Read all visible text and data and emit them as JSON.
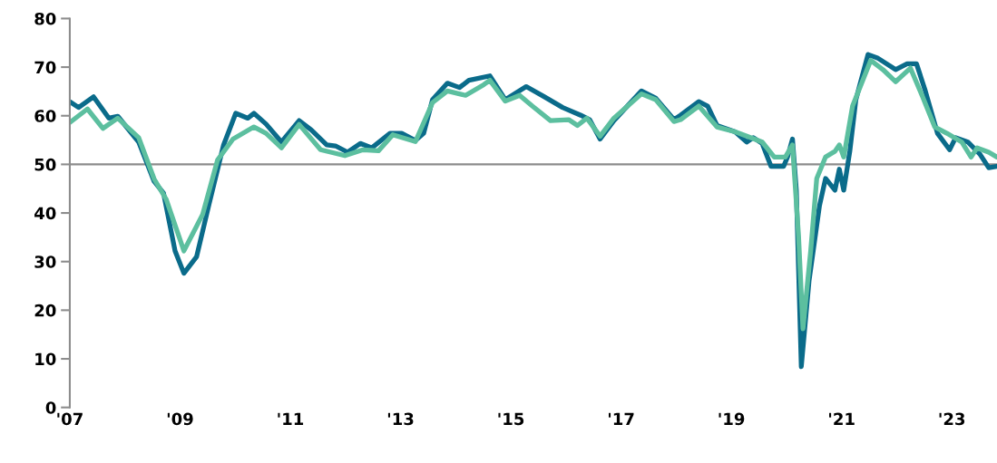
{
  "chart_data": {
    "type": "line",
    "xlim": [
      2007,
      2023.82
    ],
    "ylim": [
      0,
      80
    ],
    "xticks": [
      {
        "value": 2007,
        "label": "'07"
      },
      {
        "value": 2009,
        "label": "'09"
      },
      {
        "value": 2011,
        "label": "'11"
      },
      {
        "value": 2013,
        "label": "'13"
      },
      {
        "value": 2015,
        "label": "'15"
      },
      {
        "value": 2017,
        "label": "'17"
      },
      {
        "value": 2019,
        "label": "'19"
      },
      {
        "value": 2021,
        "label": "'21"
      },
      {
        "value": 2023,
        "label": "'23"
      }
    ],
    "yticks": [
      0,
      10,
      20,
      30,
      40,
      50,
      60,
      70,
      80
    ],
    "grid": false,
    "legend": false,
    "marker": "none",
    "line_style": "solid",
    "ref_lines": [
      {
        "axis": "y",
        "value": 50,
        "color": "#8c8c8c"
      }
    ],
    "series": [
      {
        "color": "#0a6b8a",
        "x": [
          2007.0,
          2007.16,
          2007.43,
          2007.71,
          2007.87,
          2008.25,
          2008.53,
          2008.7,
          2008.91,
          2009.07,
          2009.3,
          2009.52,
          2009.79,
          2010.01,
          2010.23,
          2010.34,
          2010.56,
          2010.84,
          2011.16,
          2011.38,
          2011.66,
          2011.82,
          2012.04,
          2012.27,
          2012.48,
          2012.81,
          2013.02,
          2013.27,
          2013.42,
          2013.58,
          2013.85,
          2014.07,
          2014.24,
          2014.62,
          2014.9,
          2015.28,
          2015.61,
          2015.94,
          2016.27,
          2016.43,
          2016.62,
          2016.87,
          2017.37,
          2017.63,
          2017.96,
          2018.08,
          2018.41,
          2018.57,
          2018.74,
          2019.07,
          2019.28,
          2019.4,
          2019.56,
          2019.72,
          2019.95,
          2020.02,
          2020.11,
          2020.18,
          2020.27,
          2020.41,
          2020.6,
          2020.71,
          2020.88,
          2020.96,
          2021.04,
          2021.15,
          2021.26,
          2021.48,
          2021.65,
          2021.98,
          2022.19,
          2022.36,
          2022.52,
          2022.74,
          2022.96,
          2023.07,
          2023.29,
          2023.51,
          2023.67,
          2023.82
        ],
        "values": [
          62.9,
          61.7,
          63.9,
          59.5,
          59.9,
          54.6,
          46.5,
          44.1,
          32.2,
          27.6,
          31.0,
          41.5,
          54.0,
          60.5,
          59.5,
          60.5,
          58.3,
          54.6,
          59.0,
          57.1,
          54.0,
          53.8,
          52.5,
          54.3,
          53.4,
          56.4,
          56.4,
          54.9,
          56.4,
          63.3,
          66.7,
          65.8,
          67.3,
          68.2,
          63.3,
          66.0,
          63.9,
          61.7,
          60.1,
          59.2,
          55.2,
          59.0,
          65.1,
          63.6,
          59.2,
          60.1,
          62.9,
          62.0,
          58.0,
          56.7,
          54.6,
          55.5,
          54.3,
          49.6,
          49.6,
          51.5,
          55.2,
          44.7,
          8.4,
          26.0,
          41.5,
          47.1,
          44.7,
          49.0,
          44.7,
          52.7,
          63.3,
          72.6,
          71.9,
          69.5,
          70.7,
          70.7,
          65.1,
          56.4,
          53.0,
          55.5,
          54.6,
          52.1,
          49.3,
          49.6
        ]
      },
      {
        "color": "#5cbf9f",
        "x": [
          2007.0,
          2007.32,
          2007.6,
          2007.87,
          2008.25,
          2008.53,
          2008.75,
          2009.07,
          2009.41,
          2009.68,
          2009.96,
          2010.34,
          2010.56,
          2010.84,
          2011.16,
          2011.55,
          2011.99,
          2012.32,
          2012.6,
          2012.86,
          2013.27,
          2013.58,
          2013.85,
          2014.18,
          2014.51,
          2014.62,
          2014.9,
          2015.16,
          2015.39,
          2015.72,
          2016.05,
          2016.21,
          2016.38,
          2016.62,
          2016.87,
          2017.37,
          2017.63,
          2017.96,
          2018.08,
          2018.41,
          2018.74,
          2019.07,
          2019.28,
          2019.56,
          2019.78,
          2019.98,
          2020.11,
          2020.22,
          2020.3,
          2020.44,
          2020.55,
          2020.71,
          2020.88,
          2020.96,
          2021.04,
          2021.2,
          2021.53,
          2021.75,
          2021.98,
          2022.25,
          2022.47,
          2022.69,
          2022.91,
          2023.18,
          2023.35,
          2023.46,
          2023.67,
          2023.82
        ],
        "values": [
          58.6,
          61.4,
          57.4,
          59.5,
          55.5,
          47.0,
          42.8,
          32.2,
          39.7,
          50.9,
          55.2,
          57.7,
          56.4,
          53.4,
          58.2,
          53.0,
          51.8,
          53.0,
          52.8,
          56.1,
          54.7,
          62.7,
          65.1,
          64.2,
          66.4,
          67.3,
          63.0,
          64.2,
          62.0,
          59.0,
          59.2,
          58.0,
          59.5,
          55.8,
          59.5,
          64.5,
          63.3,
          58.8,
          59.2,
          62.0,
          57.7,
          56.7,
          55.8,
          54.6,
          51.5,
          51.5,
          54.0,
          35.3,
          16.2,
          32.2,
          47.1,
          51.5,
          52.7,
          54.0,
          51.5,
          62.0,
          71.4,
          69.5,
          67.0,
          69.8,
          63.9,
          57.7,
          56.4,
          54.6,
          51.5,
          53.4,
          52.5,
          51.5
        ]
      }
    ]
  }
}
